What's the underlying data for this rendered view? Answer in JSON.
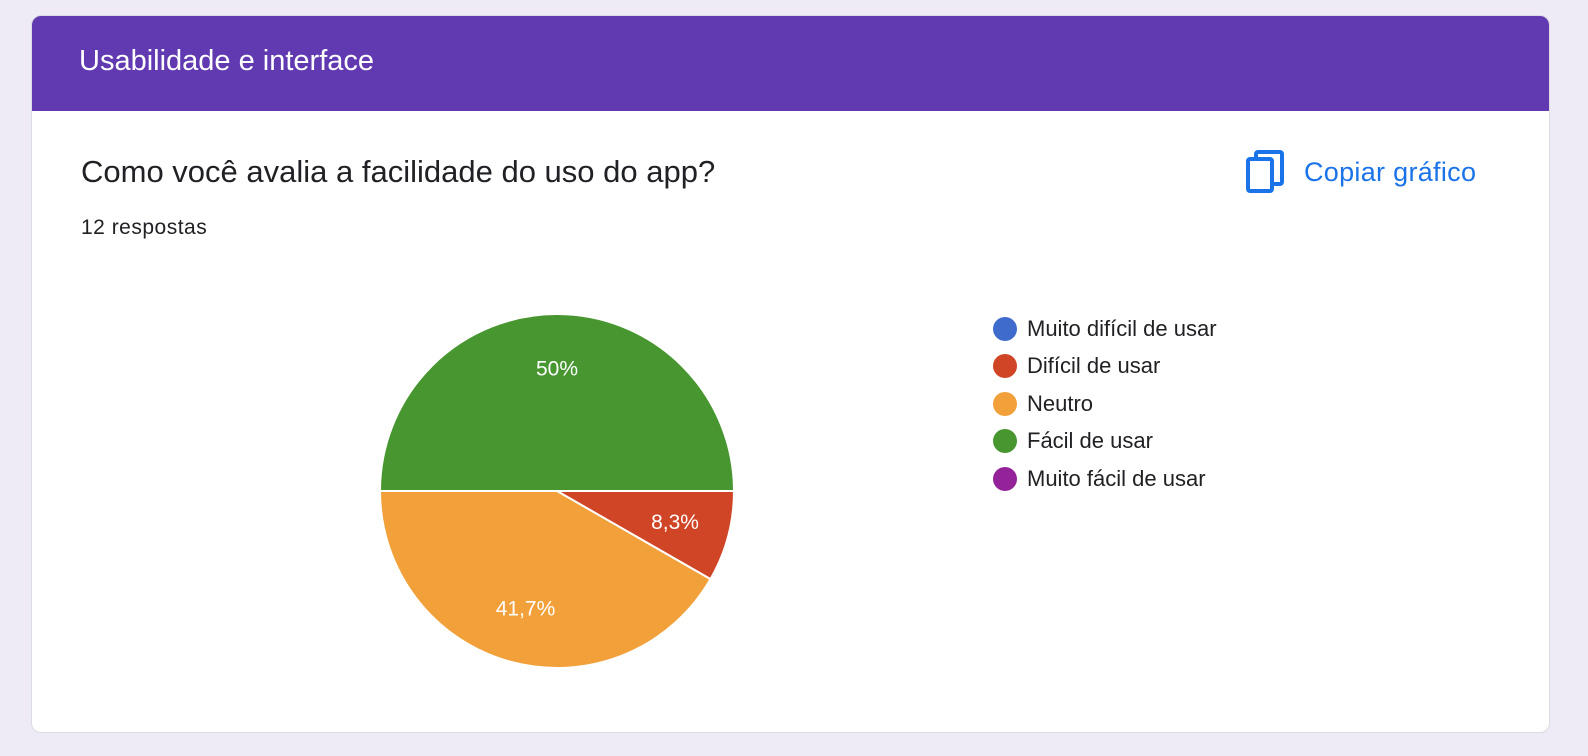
{
  "section": {
    "title": "Usabilidade e interface"
  },
  "question": {
    "title": "Como você avalia a facilidade do uso do app?",
    "responses": "12 respostas"
  },
  "toolbar": {
    "copy_label": "Copiar gráfico",
    "copy_icon": "copy-icon"
  },
  "colors": {
    "header": "#613ab1",
    "accent": "#1a73e8"
  },
  "chart_data": {
    "type": "pie",
    "categories": [
      "Muito difícil de usar",
      "Difícil de usar",
      "Neutro",
      "Fácil de usar",
      "Muito fácil de usar"
    ],
    "values": [
      0,
      8.3,
      41.7,
      50,
      0
    ],
    "labels": [
      "",
      "8,3%",
      "41,7%",
      "50%",
      ""
    ],
    "colors": [
      "#3f6bcc",
      "#d04526",
      "#f2a03a",
      "#47962f",
      "#94239a"
    ],
    "legend_position": "right"
  }
}
